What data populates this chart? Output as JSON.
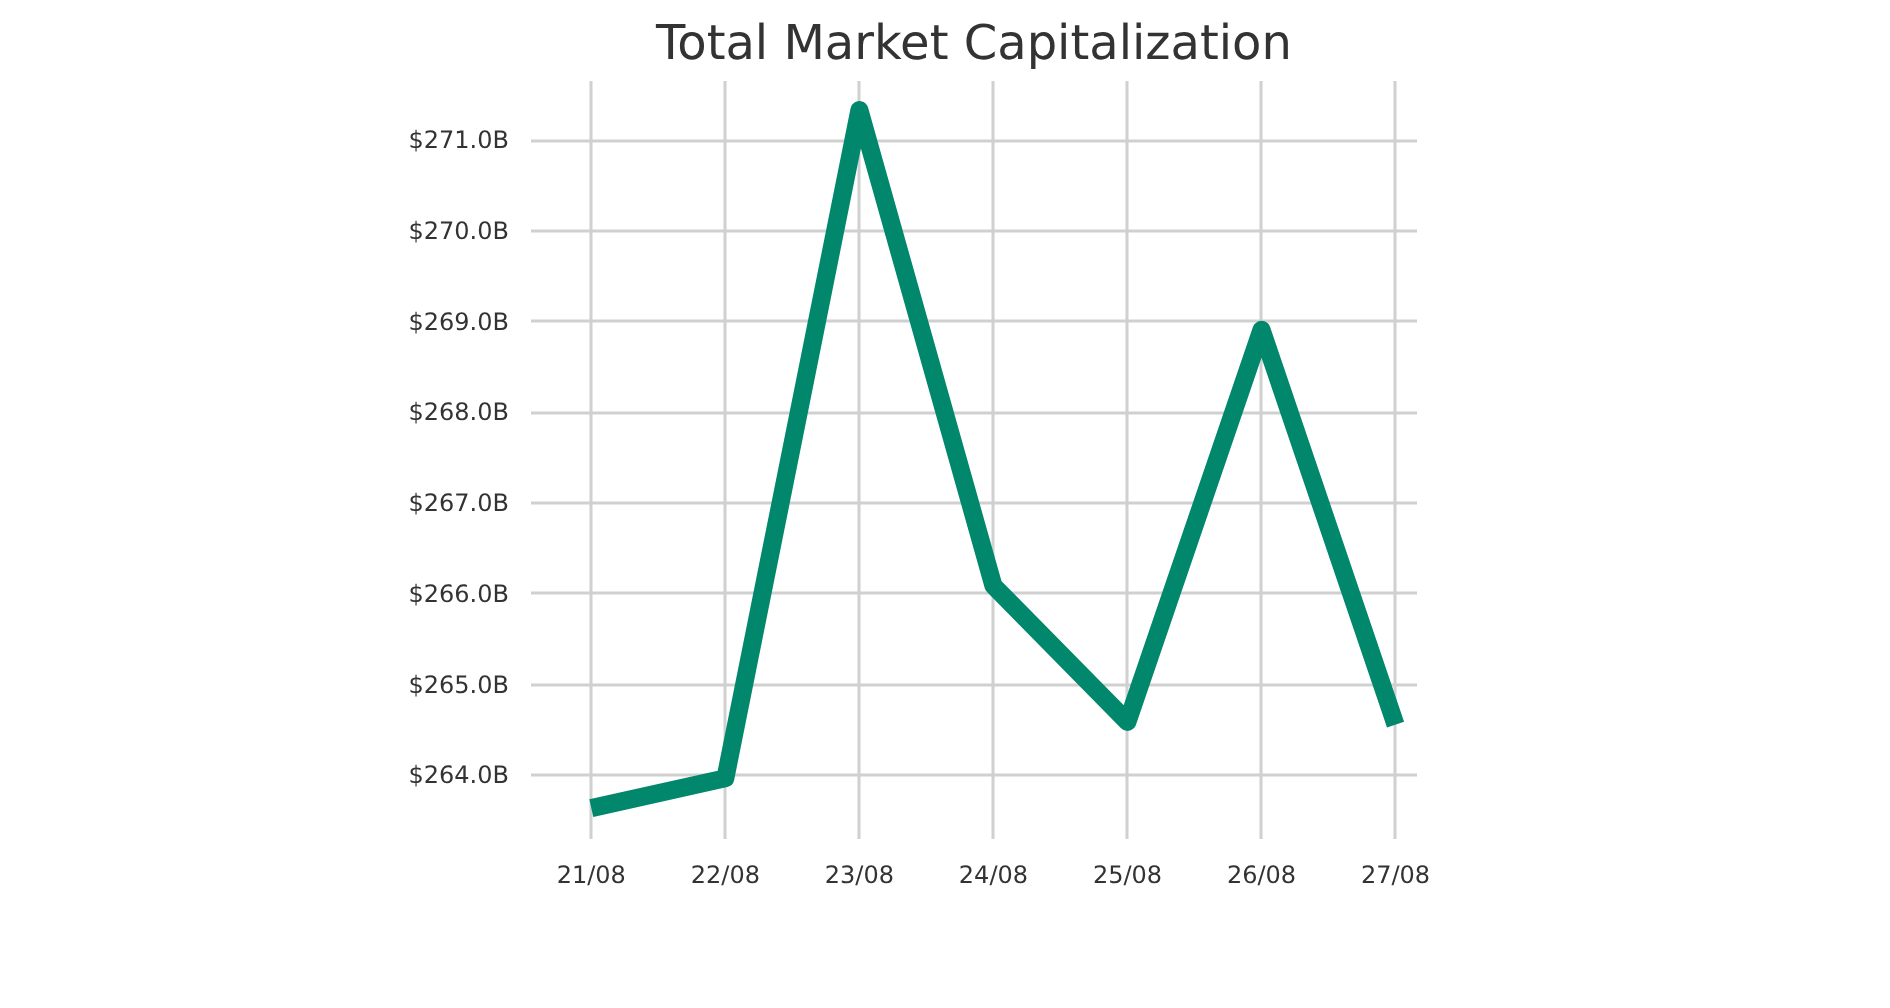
{
  "chart_data": {
    "type": "line",
    "title": "Total Market Capitalization",
    "categories": [
      "21/08",
      "22/08",
      "23/08",
      "24/08",
      "25/08",
      "26/08",
      "27/08"
    ],
    "series": [
      {
        "color": "#00876c",
        "values": [
          263.64,
          263.97,
          271.33,
          266.09,
          264.59,
          268.91,
          264.56
        ]
      }
    ],
    "ylim": [
      263.3,
      271.65
    ],
    "yticks": [
      {
        "value": 264,
        "label": "$264.0B"
      },
      {
        "value": 265,
        "label": "$265.0B"
      },
      {
        "value": 266,
        "label": "$266.0B"
      },
      {
        "value": 267,
        "label": "$267.0B"
      },
      {
        "value": 268,
        "label": "$268.0B"
      },
      {
        "value": 269,
        "label": "$269.0B"
      },
      {
        "value": 270,
        "label": "$270.0B"
      },
      {
        "value": 271,
        "label": "$271.0B"
      }
    ],
    "grid": true,
    "marker": "none",
    "line_style": "solid"
  }
}
